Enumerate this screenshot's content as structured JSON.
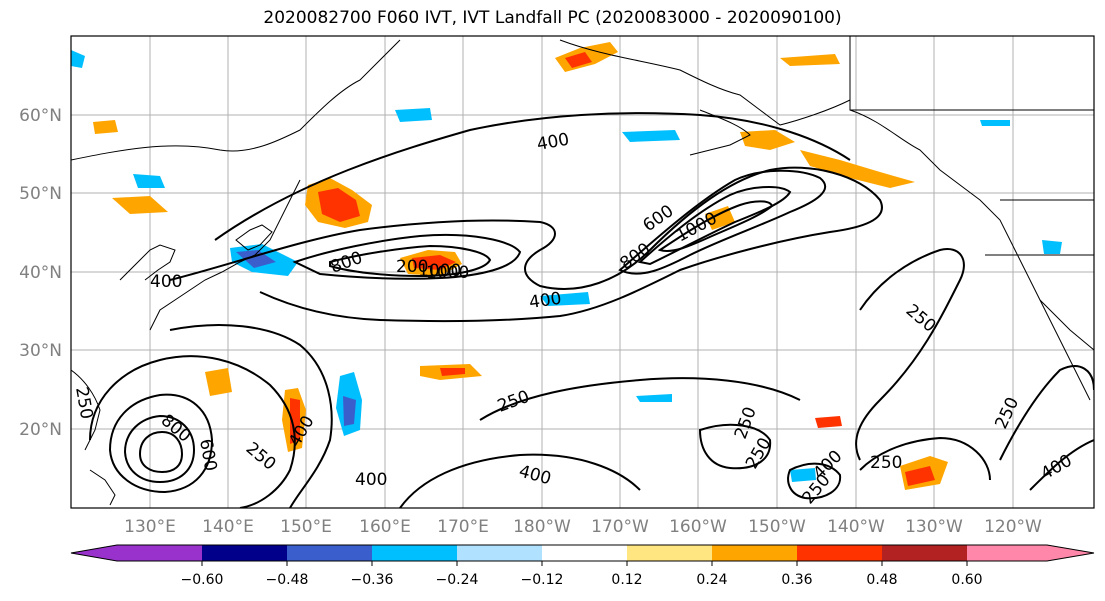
{
  "title": "2020082700 F060 IVT, IVT Landfall PC (2020083000 - 2020090100)",
  "map": {
    "lon_labels": [
      "130°E",
      "140°E",
      "150°E",
      "160°E",
      "170°E",
      "180°W",
      "170°W",
      "160°W",
      "150°W",
      "140°W",
      "130°W",
      "120°W"
    ],
    "lat_labels": [
      "60°N",
      "50°N",
      "40°N",
      "30°N",
      "20°N"
    ],
    "contour_labels": [
      "400",
      "600",
      "1000",
      "800",
      "800",
      "1000",
      "400",
      "400",
      "250",
      "250",
      "400",
      "400",
      "250",
      "250",
      "250",
      "400",
      "250",
      "250",
      "250",
      "400",
      "800",
      "600",
      "250",
      "200",
      "1000",
      "400"
    ],
    "gridlines": true
  },
  "colorbar": {
    "tick_labels": [
      "−0.60",
      "−0.48",
      "−0.36",
      "−0.24",
      "−0.12",
      "0.12",
      "0.24",
      "0.36",
      "0.48",
      "0.60"
    ],
    "colors": [
      "#9932cc",
      "#00008b",
      "#3a5fcd",
      "#00bfff",
      "#b0e2ff",
      "#ffffff",
      "#ffe680",
      "#ffa500",
      "#ff3300",
      "#b22222",
      "#ff88aa"
    ]
  }
}
